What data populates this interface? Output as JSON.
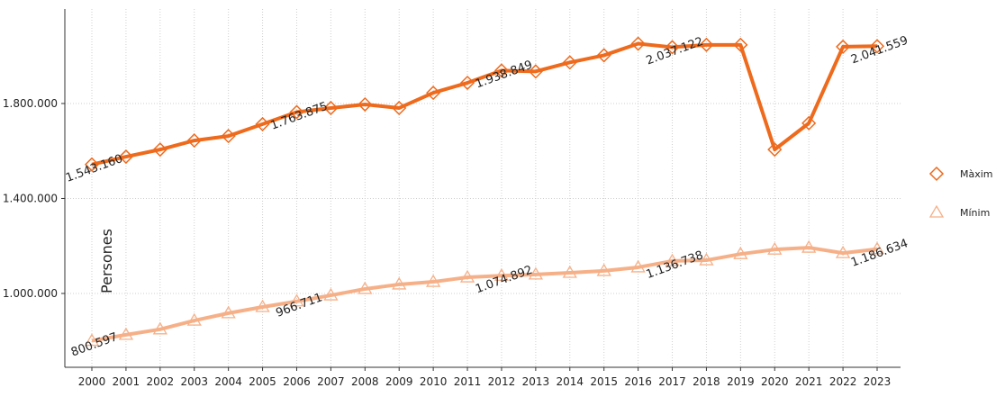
{
  "chart_data": {
    "type": "line",
    "y_label": "Persones",
    "categories": [
      "2000",
      "2001",
      "2002",
      "2003",
      "2004",
      "2005",
      "2006",
      "2007",
      "2008",
      "2009",
      "2010",
      "2011",
      "2012",
      "2013",
      "2014",
      "2015",
      "2016",
      "2017",
      "2018",
      "2019",
      "2020",
      "2021",
      "2022",
      "2023"
    ],
    "series": [
      {
        "name": "Màxim",
        "color": "#ee6a1c",
        "marker": "diamond",
        "values": [
          1543160,
          1576000,
          1606000,
          1644000,
          1663000,
          1713000,
          1763875,
          1781000,
          1796000,
          1781000,
          1845000,
          1887000,
          1938849,
          1935000,
          1973000,
          2003000,
          2052000,
          2037122,
          2047000,
          2047000,
          1606000,
          1717000,
          2039000,
          2041559
        ],
        "value_labels": [
          "1.543.160",
          null,
          null,
          null,
          null,
          null,
          "1.763.875",
          null,
          null,
          null,
          null,
          null,
          "1.938.849",
          null,
          null,
          null,
          null,
          "2.037.122",
          null,
          null,
          null,
          null,
          null,
          "2.041.559"
        ]
      },
      {
        "name": "Mínim",
        "color": "#f6b088",
        "marker": "triangle",
        "values": [
          800597,
          826000,
          849000,
          886000,
          917000,
          943000,
          966711,
          992000,
          1019000,
          1038000,
          1049000,
          1068000,
          1074892,
          1080000,
          1087000,
          1095000,
          1110000,
          1136738,
          1140000,
          1166000,
          1185000,
          1193000,
          1170000,
          1186634
        ],
        "value_labels": [
          "800.597",
          null,
          null,
          null,
          null,
          null,
          "966.711",
          null,
          null,
          null,
          null,
          null,
          "1.074.892",
          null,
          null,
          null,
          null,
          "1.136.738",
          null,
          null,
          null,
          null,
          null,
          "1.186.634"
        ]
      }
    ],
    "ylim": [
      689000,
      2198000
    ],
    "yticks": [
      {
        "value": 1000000,
        "label": "1.000.000"
      },
      {
        "value": 1400000,
        "label": "1.400.000"
      },
      {
        "value": 1800000,
        "label": "1.800.000"
      }
    ],
    "grid": true,
    "legend": "right"
  }
}
